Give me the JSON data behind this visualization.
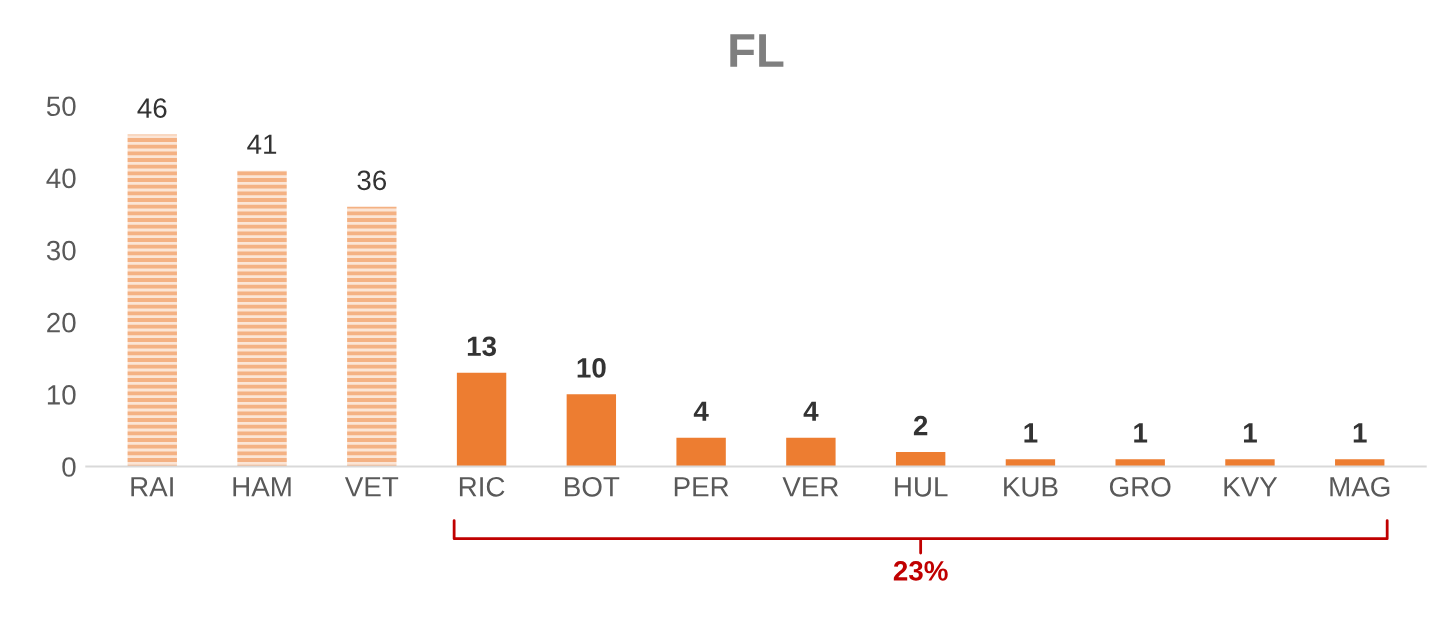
{
  "chart_data": {
    "type": "bar",
    "title": "FL",
    "categories": [
      "RAI",
      "HAM",
      "VET",
      "RIC",
      "BOT",
      "PER",
      "VER",
      "HUL",
      "KUB",
      "GRO",
      "KVY",
      "MAG"
    ],
    "values": [
      46,
      41,
      36,
      13,
      10,
      4,
      4,
      2,
      1,
      1,
      1,
      1
    ],
    "colors": [
      "#f4b183",
      "#f4b183",
      "#f4b183",
      "#ed7d31",
      "#ed7d31",
      "#ed7d31",
      "#ed7d31",
      "#ed7d31",
      "#ed7d31",
      "#ed7d31",
      "#ed7d31",
      "#ed7d31"
    ],
    "ylim": [
      0,
      50
    ],
    "yticks": [
      0,
      10,
      20,
      30,
      40,
      50
    ],
    "grid": false,
    "data_labels": true,
    "annotations": [
      "23%"
    ]
  }
}
